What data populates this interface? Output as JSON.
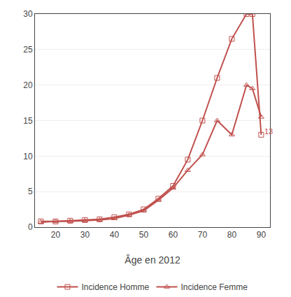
{
  "chart_data": {
    "type": "line",
    "x": [
      15,
      20,
      25,
      30,
      35,
      40,
      45,
      50,
      55,
      60,
      65,
      70,
      75,
      80,
      85,
      87,
      90
    ],
    "series": [
      {
        "name": "Incidence Homme",
        "color": "#c0504d",
        "marker": "square",
        "line_style": "solid",
        "values": [
          0.8,
          0.8,
          0.9,
          1.0,
          1.1,
          1.4,
          1.8,
          2.5,
          4.0,
          5.8,
          9.5,
          15.0,
          21.0,
          26.5,
          30.0,
          30.0,
          13.0
        ]
      },
      {
        "name": "Incidence Femme",
        "color": "#c0504d",
        "marker": "triangle",
        "line_style": "solid",
        "values": [
          0.7,
          0.8,
          0.8,
          0.9,
          1.0,
          1.2,
          1.7,
          2.3,
          3.8,
          5.5,
          8.0,
          10.2,
          15.0,
          13.0,
          20.0,
          19.5,
          15.5
        ]
      }
    ],
    "xlabel": "Âge en 2012",
    "xlim": [
      13,
      93
    ],
    "xticks": [
      20,
      30,
      40,
      50,
      60,
      70,
      80,
      90
    ],
    "ylim": [
      0,
      30
    ],
    "yticks": [
      0,
      5,
      10,
      15,
      20,
      25,
      30
    ],
    "grid": "y",
    "legend": "bottom",
    "annotations": [
      {
        "text": "13",
        "x": 90.5,
        "y": 13.5,
        "series": "Incidence Homme"
      }
    ]
  }
}
